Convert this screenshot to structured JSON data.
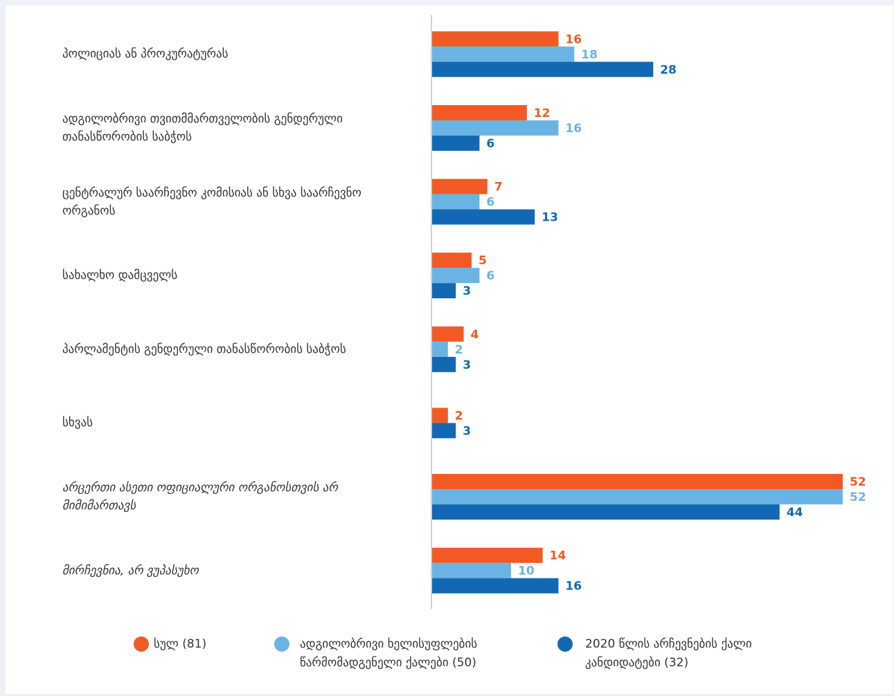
{
  "chart_data": {
    "type": "bar",
    "orientation": "horizontal",
    "categories": [
      "პოლიციას ან პროკურატურას",
      "ადგილობრივი თვითმმართველობის გენდერული თანასწორობის საბჭოს",
      "ცენტრალურ საარჩევნო კომისიას ან სხვა საარჩევნო ორგანოს",
      "სახალხო დამცველს",
      "პარლამენტის გენდერული თანასწორობის საბჭოს",
      "სხვას",
      "არცერთი ასეთი ოფიციალური ორგანოსთვის არ მიმიმართავს",
      "მირჩევნია, არ ვუპასუხო"
    ],
    "series": [
      {
        "name": "სულ (81)",
        "color": "#f15a24",
        "values": [
          16,
          12,
          7,
          5,
          4,
          2,
          52,
          14
        ]
      },
      {
        "name": "ადგილობრივი ხელისუფლების წარმომადგენელი ქალები (50)",
        "color": "#6ab4e4",
        "values": [
          18,
          16,
          6,
          6,
          2,
          null,
          52,
          10
        ]
      },
      {
        "name": "2020 წლის არჩევნების ქალი კანდიდატები (32)",
        "color": "#1268b3",
        "values": [
          28,
          6,
          13,
          3,
          3,
          3,
          44,
          16
        ]
      }
    ],
    "legend": "bottom"
  }
}
